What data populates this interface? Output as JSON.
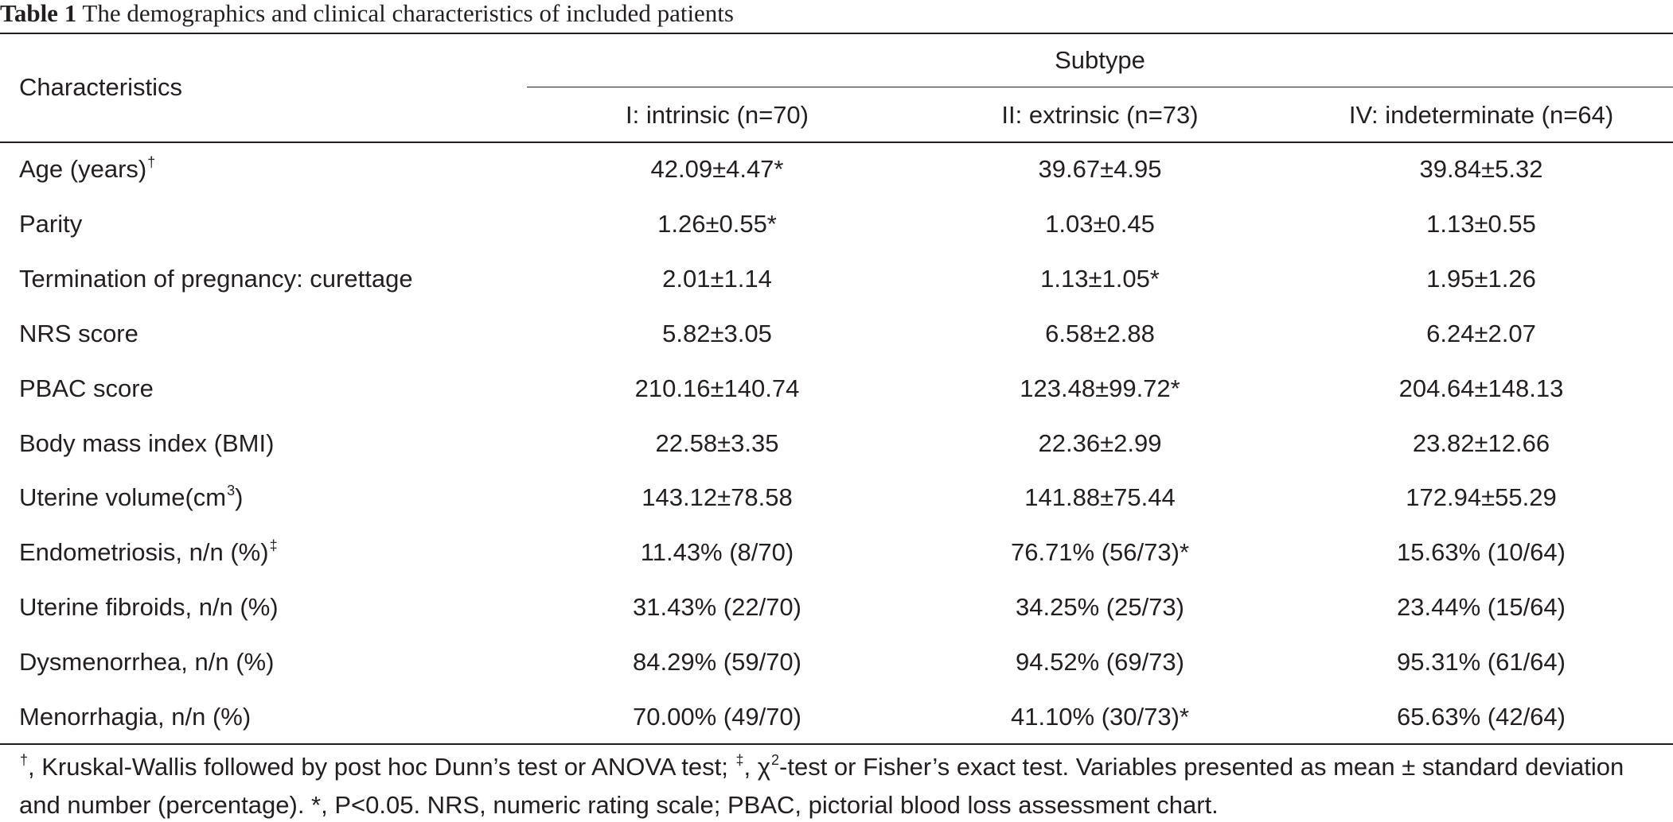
{
  "caption": {
    "label": "Table 1",
    "text": " The demographics and clinical characteristics of included patients"
  },
  "headers": {
    "characteristics": "Characteristics",
    "group": "Subtype",
    "columns": [
      "I: intrinsic (n=70)",
      "II: extrinsic (n=73)",
      "IV: indeterminate (n=64)"
    ]
  },
  "rows": [
    {
      "label": "Age (years)",
      "sup": "†",
      "suffix": "",
      "values": [
        "42.09±4.47*",
        "39.67±4.95",
        "39.84±5.32"
      ]
    },
    {
      "label": "Parity",
      "sup": "",
      "suffix": "",
      "values": [
        "1.26±0.55*",
        "1.03±0.45",
        "1.13±0.55"
      ]
    },
    {
      "label": "Termination of pregnancy: curettage",
      "sup": "",
      "suffix": "",
      "values": [
        "2.01±1.14",
        "1.13±1.05*",
        "1.95±1.26"
      ]
    },
    {
      "label": "NRS score",
      "sup": "",
      "suffix": "",
      "values": [
        "5.82±3.05",
        "6.58±2.88",
        "6.24±2.07"
      ]
    },
    {
      "label": "PBAC score",
      "sup": "",
      "suffix": "",
      "values": [
        "210.16±140.74",
        "123.48±99.72*",
        "204.64±148.13"
      ]
    },
    {
      "label": "Body mass index (BMI)",
      "sup": "",
      "suffix": "",
      "values": [
        "22.58±3.35",
        "22.36±2.99",
        "23.82±12.66"
      ]
    },
    {
      "label": "Uterine volume(cm",
      "sup": "3",
      "suffix": ")",
      "values": [
        "143.12±78.58",
        "141.88±75.44",
        "172.94±55.29"
      ]
    },
    {
      "label": "Endometriosis, n/n (%)",
      "sup": "‡",
      "suffix": "",
      "values": [
        "11.43% (8/70)",
        "76.71% (56/73)*",
        "15.63% (10/64)"
      ]
    },
    {
      "label": "Uterine fibroids, n/n (%)",
      "sup": "",
      "suffix": "",
      "values": [
        "31.43% (22/70)",
        "34.25% (25/73)",
        "23.44% (15/64)"
      ]
    },
    {
      "label": "Dysmenorrhea, n/n (%)",
      "sup": "",
      "suffix": "",
      "values": [
        "84.29% (59/70)",
        "94.52% (69/73)",
        "95.31% (61/64)"
      ]
    },
    {
      "label": "Menorrhagia, n/n (%)",
      "sup": "",
      "suffix": "",
      "values": [
        "70.00% (49/70)",
        "41.10% (30/73)*",
        "65.63% (42/64)"
      ]
    }
  ],
  "footnote": {
    "dagger": "†",
    "part1": ", Kruskal-Wallis followed by post hoc Dunn’s test or ANOVA test; ",
    "ddagger": "‡",
    "part2": ", χ",
    "chi_sup": "2",
    "part3": "-test or Fisher’s exact test. Variables presented as mean ± standard deviation and number (percentage). *, P<0.05. NRS, numeric rating scale; PBAC, pictorial blood loss assessment chart."
  }
}
